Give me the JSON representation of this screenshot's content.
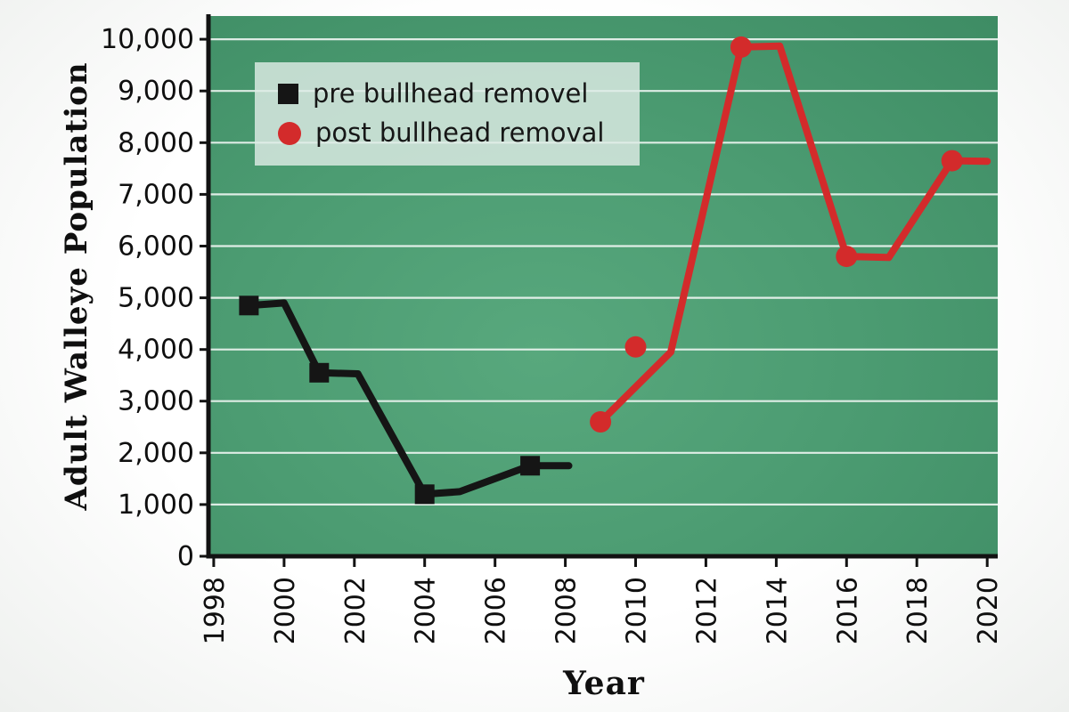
{
  "chart_data": {
    "type": "line",
    "title": "",
    "xlabel": "Year",
    "ylabel": "Adult Walleye Population",
    "xlim": [
      1997.9,
      2020.3
    ],
    "ylim": [
      0,
      10450
    ],
    "x_ticks": [
      1998,
      2000,
      2002,
      2004,
      2006,
      2008,
      2010,
      2012,
      2014,
      2016,
      2018,
      2020
    ],
    "y_ticks": [
      0,
      1000,
      2000,
      3000,
      4000,
      5000,
      6000,
      7000,
      8000,
      9000,
      10000
    ],
    "y_tick_labels": [
      "0",
      "1,000",
      "2,000",
      "3,000",
      "4,000",
      "5,000",
      "6,000",
      "7,000",
      "8,000",
      "9,000",
      "10,000"
    ],
    "grid": {
      "horizontal": true,
      "color": "#ffffff"
    },
    "legend_position": "upper-left",
    "axis_color": "#121212",
    "series": [
      {
        "name": "pre bullhead removel",
        "color": "#151515",
        "marker": "square",
        "line_points": [
          [
            1999,
            4850
          ],
          [
            2000,
            4900
          ],
          [
            2001,
            3550
          ],
          [
            2002.1,
            3530
          ],
          [
            2004,
            1200
          ],
          [
            2005,
            1250
          ],
          [
            2007,
            1750
          ],
          [
            2008.1,
            1750
          ]
        ],
        "marker_points": [
          [
            1999,
            4850
          ],
          [
            2001,
            3550
          ],
          [
            2004,
            1200
          ],
          [
            2007,
            1750
          ]
        ]
      },
      {
        "name": "post bullhead removal",
        "color": "#d32b2b",
        "marker": "circle",
        "line_points": [
          [
            2009,
            2600
          ],
          [
            2011,
            3950
          ],
          [
            2013,
            9850
          ],
          [
            2014.1,
            9870
          ],
          [
            2016,
            5800
          ],
          [
            2017.2,
            5780
          ],
          [
            2019,
            7650
          ],
          [
            2020,
            7640
          ]
        ],
        "marker_points": [
          [
            2009,
            2600
          ],
          [
            2010,
            4050
          ],
          [
            2013,
            9850
          ],
          [
            2016,
            5800
          ],
          [
            2019,
            7650
          ]
        ]
      }
    ]
  },
  "legend": {
    "items": [
      {
        "label": "pre bullhead removel",
        "color": "#151515",
        "marker": "square"
      },
      {
        "label": "post bullhead removal",
        "color": "#d32b2b",
        "marker": "circle"
      }
    ]
  }
}
